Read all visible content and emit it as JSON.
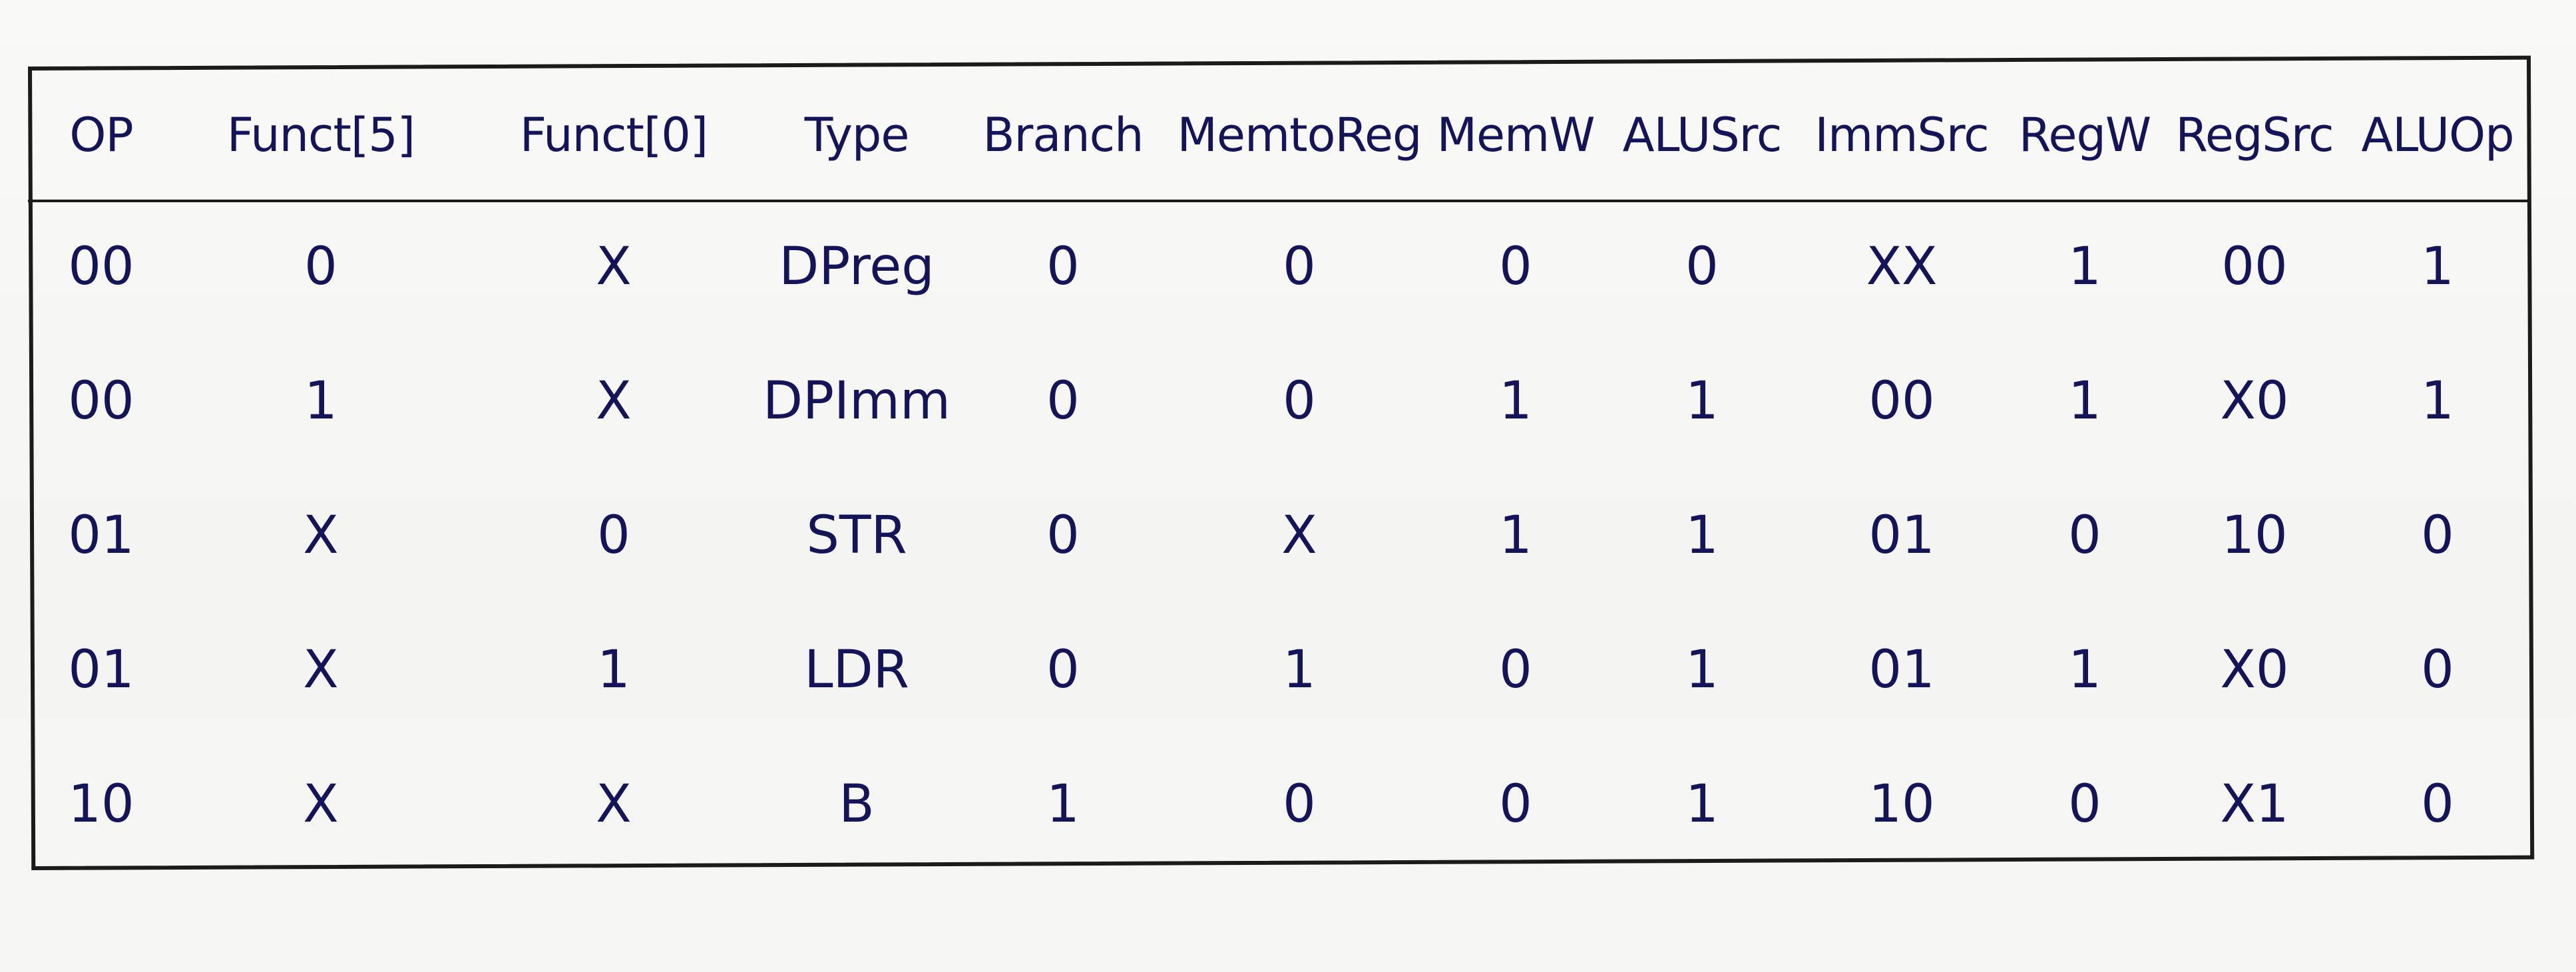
{
  "table": {
    "headers": [
      "OP",
      "Funct[5]",
      "Funct[0]",
      "Type",
      "Branch",
      "MemtoReg",
      "MemW",
      "ALUSrc",
      "ImmSrc",
      "RegW",
      "RegSrc",
      "ALUOp"
    ],
    "rows": [
      [
        "00",
        "0",
        "X",
        "DPreg",
        "0",
        "0",
        "0",
        "0",
        "XX",
        "1",
        "00",
        "1"
      ],
      [
        "00",
        "1",
        "X",
        "DPImm",
        "0",
        "0",
        "1",
        "1",
        "00",
        "1",
        "X0",
        "1"
      ],
      [
        "01",
        "X",
        "0",
        "STR",
        "0",
        "X",
        "1",
        "1",
        "01",
        "0",
        "10",
        "0"
      ],
      [
        "01",
        "X",
        "1",
        "LDR",
        "0",
        "1",
        "0",
        "1",
        "01",
        "1",
        "X0",
        "0"
      ],
      [
        "10",
        "X",
        "X",
        "B",
        "1",
        "0",
        "0",
        "1",
        "10",
        "0",
        "X1",
        "0"
      ]
    ]
  }
}
